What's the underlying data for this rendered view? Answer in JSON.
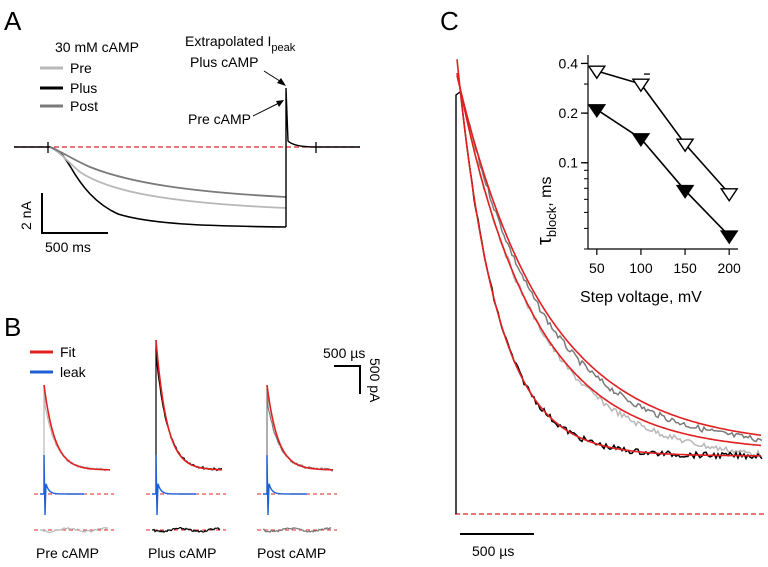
{
  "panels": {
    "a": {
      "letter": "A",
      "legend_title": "30 mM cAMP",
      "legend": [
        {
          "name": "Pre",
          "color": "#b8b8b8"
        },
        {
          "name": "Plus",
          "color": "#000000"
        },
        {
          "name": "Post",
          "color": "#7a7a7a"
        }
      ],
      "annot_peak_prefix": "Extrapolated I",
      "annot_peak_sub": "peak",
      "annot_plus": "Plus cAMP",
      "annot_pre": "Pre cAMP",
      "scale_y": "2 nA",
      "scale_x": "500 ms"
    },
    "b": {
      "letter": "B",
      "legend": [
        {
          "name": "Fit",
          "color": "#e02020"
        },
        {
          "name": "leak",
          "color": "#1f5fd6"
        }
      ],
      "scale_x": "500 µs",
      "scale_y": "500 pA",
      "labels": [
        "Pre cAMP",
        "Plus cAMP",
        "Post cAMP"
      ]
    },
    "c": {
      "letter": "C",
      "scale_x": "500 µs",
      "inset_ylabel_main": "τ",
      "inset_ylabel_sub": "block",
      "inset_ylabel_suffix": ", ms",
      "inset_xlabel": "Step voltage, mV"
    }
  },
  "colors": {
    "pre": "#b8b8b8",
    "plus": "#000000",
    "post": "#7a7a7a",
    "fit": "#e02020",
    "leak": "#1f5fd6",
    "zero_line": "#e02020"
  },
  "chart_data": {
    "type": "line",
    "title": "",
    "xlabel": "Step voltage, mV",
    "ylabel": "τblock, ms",
    "y_scale": "log",
    "xlim": [
      40,
      210
    ],
    "ylim": [
      0.03,
      0.45
    ],
    "x_ticks": [
      50,
      100,
      150,
      200
    ],
    "y_ticks": [
      0.1,
      0.2,
      0.4
    ],
    "series": [
      {
        "marker": "open-triangle-down",
        "x": [
          50,
          100,
          150,
          200
        ],
        "y": [
          0.36,
          0.3,
          0.13,
          0.065
        ]
      },
      {
        "marker": "filled-triangle-down",
        "x": [
          50,
          100,
          150,
          200
        ],
        "y": [
          0.21,
          0.14,
          0.068,
          0.036
        ]
      }
    ]
  }
}
